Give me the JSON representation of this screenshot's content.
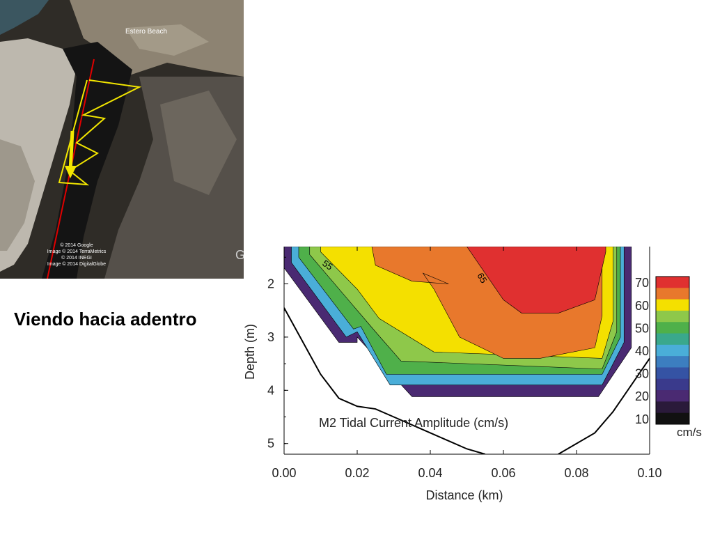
{
  "satellite": {
    "place_label": "Estero Beach",
    "credits": [
      "© 2014 Google",
      "Image © 2014 TerraMetrics",
      "© 2014 INEGI",
      "Image © 2014 DigitalGlobe"
    ],
    "compass_glyph": "G",
    "track_color": "#f2e600",
    "line_color": "#e00000"
  },
  "caption": "Viendo hacia adentro",
  "chart_data": {
    "type": "contour",
    "title": "M2 Tidal Current Amplitude (cm/s)",
    "xlabel": "Distance (km)",
    "ylabel": "Depth (m)",
    "xlim": [
      0.0,
      0.1
    ],
    "ylim": [
      5.2,
      1.3
    ],
    "y_inverted": true,
    "xticks": [
      "0.00",
      "0.02",
      "0.04",
      "0.06",
      "0.08",
      "0.10"
    ],
    "yticks": [
      "2",
      "3",
      "4",
      "5"
    ],
    "contour_labels": [
      "55",
      "65"
    ],
    "colorbar": {
      "ticks": [
        "70",
        "60",
        "50",
        "40",
        "30",
        "20",
        "10"
      ],
      "unit": "cm/s",
      "levels": [
        {
          "value": 70,
          "color": "#e03030"
        },
        {
          "value": 65,
          "color": "#e8782c"
        },
        {
          "value": 60,
          "color": "#f4e000"
        },
        {
          "value": 55,
          "color": "#8ec84a"
        },
        {
          "value": 50,
          "color": "#4fb04a"
        },
        {
          "value": 45,
          "color": "#3aa88c"
        },
        {
          "value": 40,
          "color": "#4aaed8"
        },
        {
          "value": 35,
          "color": "#3c7ec0"
        },
        {
          "value": 30,
          "color": "#3553a4"
        },
        {
          "value": 25,
          "color": "#3a3a8c"
        },
        {
          "value": 20,
          "color": "#4a2a72"
        },
        {
          "value": 15,
          "color": "#2a1a3a"
        },
        {
          "value": 10,
          "color": "#111111"
        }
      ]
    },
    "regions": [
      {
        "level": 25,
        "color": "#4a2a72",
        "boundary": [
          [
            0.0,
            1.3
          ],
          [
            0.0,
            1.7
          ],
          [
            0.015,
            3.1
          ],
          [
            0.02,
            3.1
          ],
          [
            0.02,
            3.0
          ],
          [
            0.035,
            4.12
          ],
          [
            0.086,
            4.12
          ],
          [
            0.095,
            3.2
          ],
          [
            0.095,
            1.3
          ]
        ]
      },
      {
        "level": 40,
        "color": "#4aaed8",
        "boundary": [
          [
            0.002,
            1.3
          ],
          [
            0.002,
            1.6
          ],
          [
            0.017,
            3.0
          ],
          [
            0.02,
            2.9
          ],
          [
            0.029,
            3.9
          ],
          [
            0.087,
            3.9
          ],
          [
            0.093,
            3.1
          ],
          [
            0.093,
            1.3
          ]
        ]
      },
      {
        "level": 50,
        "color": "#4fb04a",
        "boundary": [
          [
            0.004,
            1.3
          ],
          [
            0.004,
            1.5
          ],
          [
            0.019,
            2.85
          ],
          [
            0.021,
            2.8
          ],
          [
            0.028,
            3.7
          ],
          [
            0.087,
            3.7
          ],
          [
            0.092,
            3.0
          ],
          [
            0.092,
            1.3
          ]
        ]
      },
      {
        "level": 55,
        "color": "#8ec84a",
        "boundary": [
          [
            0.007,
            1.3
          ],
          [
            0.007,
            1.45
          ],
          [
            0.025,
            2.9
          ],
          [
            0.032,
            3.45
          ],
          [
            0.087,
            3.6
          ],
          [
            0.091,
            2.9
          ],
          [
            0.091,
            1.3
          ]
        ]
      },
      {
        "level": 60,
        "color": "#f4e000",
        "boundary": [
          [
            0.01,
            1.3
          ],
          [
            0.01,
            1.4
          ],
          [
            0.02,
            2.1
          ],
          [
            0.026,
            2.65
          ],
          [
            0.041,
            3.28
          ],
          [
            0.087,
            3.4
          ],
          [
            0.09,
            2.7
          ],
          [
            0.09,
            1.3
          ]
        ]
      },
      {
        "level": 65,
        "color": "#e8782c",
        "boundary": [
          [
            0.024,
            1.3
          ],
          [
            0.025,
            1.65
          ],
          [
            0.035,
            1.95
          ],
          [
            0.045,
            2.0
          ],
          [
            0.038,
            1.8
          ],
          [
            0.041,
            2.1
          ],
          [
            0.048,
            3.0
          ],
          [
            0.06,
            3.4
          ],
          [
            0.07,
            3.4
          ],
          [
            0.085,
            3.2
          ],
          [
            0.087,
            2.6
          ],
          [
            0.087,
            1.3
          ]
        ]
      },
      {
        "level": 70,
        "color": "#e03030",
        "boundary": [
          [
            0.05,
            1.3
          ],
          [
            0.055,
            1.8
          ],
          [
            0.06,
            2.3
          ],
          [
            0.065,
            2.55
          ],
          [
            0.075,
            2.55
          ],
          [
            0.085,
            2.3
          ],
          [
            0.088,
            1.4
          ],
          [
            0.088,
            1.3
          ]
        ]
      }
    ],
    "bottom_profile": {
      "x": [
        0.0,
        0.01,
        0.015,
        0.02,
        0.025,
        0.03,
        0.04,
        0.05,
        0.055
      ],
      "y": [
        2.45,
        3.7,
        4.15,
        4.3,
        4.35,
        4.5,
        4.8,
        5.1,
        5.2
      ]
    },
    "bottom_profile_right": {
      "x": [
        0.075,
        0.08,
        0.085,
        0.09,
        0.095,
        0.1
      ],
      "y": [
        5.2,
        5.0,
        4.8,
        4.4,
        3.9,
        3.4
      ]
    }
  }
}
